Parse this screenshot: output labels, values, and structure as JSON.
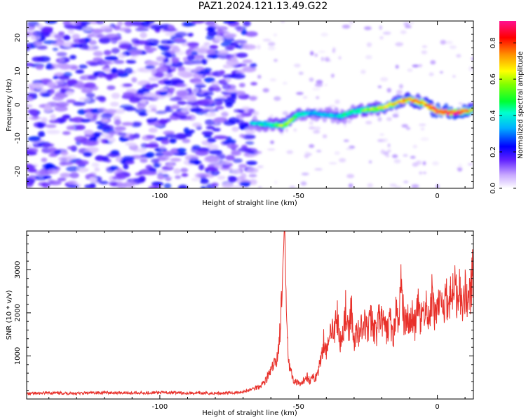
{
  "title": "PAZ1.2024.121.13.49.G22",
  "chart_data": [
    {
      "type": "heatmap",
      "title": "PAZ1.2024.121.13.49.G22",
      "xlabel": "Height of straight line (km)",
      "ylabel": "Frequency (Hz)",
      "xlim": [
        -148,
        13
      ],
      "ylim": [
        -25,
        25
      ],
      "xticks": [
        -100,
        -50,
        0
      ],
      "yticks": [
        -20,
        -10,
        0,
        10,
        20
      ],
      "colorbar": {
        "label": "Normalized spectral amplitude",
        "range": [
          0.0,
          0.92
        ],
        "ticks": [
          0.0,
          0.2,
          0.4,
          0.6,
          0.8
        ],
        "colormap": [
          "#ffffff",
          "#a070ff",
          "#4000ff",
          "#0000ff",
          "#00c8ff",
          "#00ff40",
          "#ffff00",
          "#ff8000",
          "#ff0000",
          "#ff1080"
        ]
      },
      "ridge": {
        "description_points": [
          {
            "x": -67,
            "y": -5.5,
            "v": 0.35
          },
          {
            "x": -60,
            "y": -6.0,
            "v": 0.45
          },
          {
            "x": -55,
            "y": -6.0,
            "v": 0.6
          },
          {
            "x": -50,
            "y": -3.0,
            "v": 0.45
          },
          {
            "x": -45,
            "y": -2.5,
            "v": 0.35
          },
          {
            "x": -40,
            "y": -3.0,
            "v": 0.35
          },
          {
            "x": -35,
            "y": -3.5,
            "v": 0.4
          },
          {
            "x": -30,
            "y": -2.0,
            "v": 0.45
          },
          {
            "x": -25,
            "y": -1.5,
            "v": 0.55
          },
          {
            "x": -20,
            "y": -1.0,
            "v": 0.6
          },
          {
            "x": -15,
            "y": 0.5,
            "v": 0.65
          },
          {
            "x": -10,
            "y": 1.5,
            "v": 0.7
          },
          {
            "x": -5,
            "y": 0.5,
            "v": 0.7
          },
          {
            "x": 0,
            "y": -2.0,
            "v": 0.85
          },
          {
            "x": 5,
            "y": -2.5,
            "v": 0.85
          },
          {
            "x": 10,
            "y": -2.0,
            "v": 0.8
          },
          {
            "x": 13,
            "y": -1.5,
            "v": 0.6
          }
        ],
        "background_noise_region_x": [
          -148,
          -66
        ],
        "background_noise_level": 0.15
      }
    },
    {
      "type": "line",
      "xlabel": "Height of straight line (km)",
      "ylabel": "SNR (10 * v/v)",
      "xlim": [
        -148,
        13
      ],
      "ylim": [
        0,
        3900
      ],
      "xticks": [
        -100,
        -50,
        0
      ],
      "yticks": [
        1000,
        2000,
        3000
      ],
      "color": "#e8302a",
      "series": [
        {
          "x": [
            -148,
            -140,
            -130,
            -120,
            -110,
            -100,
            -90,
            -80,
            -72,
            -68,
            -64,
            -62,
            -60,
            -58,
            -57,
            -56,
            -55.5,
            -55,
            -54.5,
            -54,
            -53.5,
            -53,
            -52,
            -51,
            -50,
            -49,
            -48,
            -47,
            -46,
            -45,
            -44,
            -43,
            -42,
            -41,
            -40,
            -39,
            -38,
            -37,
            -36,
            -35,
            -34,
            -33,
            -32,
            -31,
            -30,
            -29,
            -28,
            -27,
            -26,
            -25,
            -24,
            -23,
            -22,
            -21,
            -20,
            -19,
            -18,
            -17,
            -16,
            -15,
            -14,
            -13,
            -12,
            -11,
            -10,
            -9,
            -8,
            -7,
            -6,
            -5,
            -4,
            -3,
            -2,
            -1,
            0,
            1,
            2,
            3,
            4,
            5,
            6,
            7,
            8,
            9,
            10,
            11,
            12,
            13
          ],
          "values": [
            120,
            140,
            130,
            150,
            140,
            150,
            140,
            130,
            150,
            200,
            300,
            420,
            650,
            900,
            1300,
            2300,
            3350,
            3900,
            2400,
            1500,
            900,
            700,
            450,
            400,
            350,
            320,
            450,
            550,
            420,
            500,
            480,
            650,
            900,
            1400,
            1100,
            1300,
            1800,
            1600,
            1900,
            1250,
            1550,
            2100,
            1400,
            2200,
            1200,
            1650,
            1500,
            1800,
            1700,
            1600,
            1850,
            1700,
            1500,
            1900,
            1800,
            1650,
            1550,
            1900,
            1300,
            2100,
            1650,
            2850,
            1700,
            2000,
            1800,
            1900,
            1700,
            2150,
            1800,
            2000,
            2200,
            1750,
            2400,
            1950,
            2150,
            2350,
            1900,
            2500,
            2200,
            2400,
            2750,
            2300,
            2700,
            2100,
            2500,
            2350,
            2450,
            3050
          ]
        }
      ]
    }
  ]
}
